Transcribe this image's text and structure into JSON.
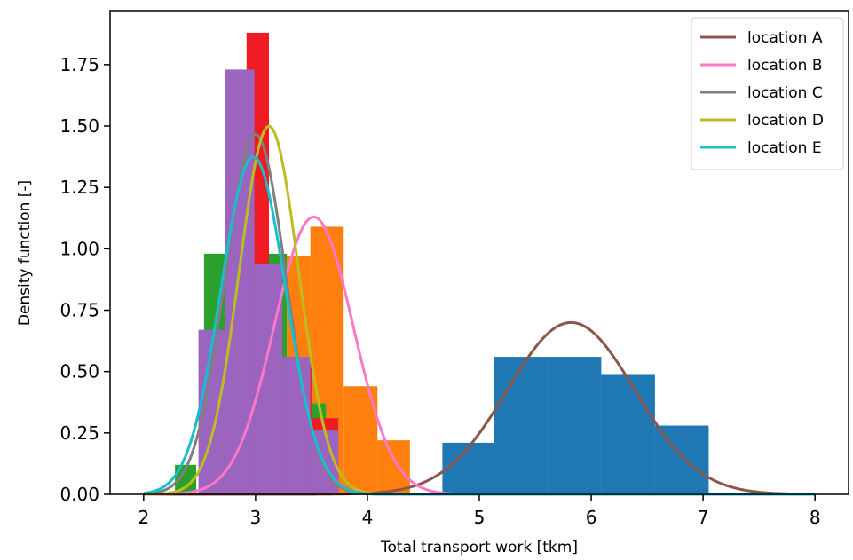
{
  "chart_data": {
    "type": "histogram+density",
    "xlabel": "Total transport work [tkm]",
    "ylabel": "Density function [-]",
    "xlim": [
      1.7,
      8.3
    ],
    "ylim": [
      0,
      1.97
    ],
    "xticks": [
      2,
      3,
      4,
      5,
      6,
      7,
      8
    ],
    "yticks": [
      0.0,
      0.25,
      0.5,
      0.75,
      1.0,
      1.25,
      1.5,
      1.75
    ],
    "xtick_labels": [
      "2",
      "3",
      "4",
      "5",
      "6",
      "7",
      "8"
    ],
    "ytick_labels": [
      "0.00",
      "0.25",
      "0.50",
      "0.75",
      "1.00",
      "1.25",
      "1.50",
      "1.75"
    ],
    "grid": false,
    "legend_position": "top-right",
    "histograms": [
      {
        "color": "#1f77b4",
        "bins": [
          {
            "x0": 4.67,
            "x1": 5.13,
            "height": 0.21
          },
          {
            "x0": 5.13,
            "x1": 5.61,
            "height": 0.56
          },
          {
            "x0": 5.61,
            "x1": 6.09,
            "height": 0.56
          },
          {
            "x0": 6.09,
            "x1": 6.57,
            "height": 0.49
          },
          {
            "x0": 6.57,
            "x1": 7.05,
            "height": 0.28
          }
        ]
      },
      {
        "color": "#ff7f0e",
        "bins": [
          {
            "x0": 3.28,
            "x1": 3.49,
            "height": 0.97
          },
          {
            "x0": 3.49,
            "x1": 3.78,
            "height": 1.09
          },
          {
            "x0": 3.78,
            "x1": 4.09,
            "height": 0.44
          },
          {
            "x0": 4.09,
            "x1": 4.38,
            "height": 0.22
          }
        ]
      },
      {
        "color": "#2ca02c",
        "bins": [
          {
            "x0": 2.28,
            "x1": 2.47,
            "height": 0.12
          },
          {
            "x0": 2.54,
            "x1": 2.76,
            "height": 0.98
          },
          {
            "x0": 3.12,
            "x1": 3.28,
            "height": 0.98
          },
          {
            "x0": 3.49,
            "x1": 3.63,
            "height": 0.37
          }
        ]
      },
      {
        "color": "#f01b22",
        "bins": [
          {
            "x0": 2.92,
            "x1": 3.12,
            "height": 1.88
          },
          {
            "x0": 3.12,
            "x1": 3.24,
            "height": 0.94
          },
          {
            "x0": 3.24,
            "x1": 3.42,
            "height": 0.4
          },
          {
            "x0": 3.42,
            "x1": 3.5,
            "height": 0.54
          },
          {
            "x0": 3.5,
            "x1": 3.74,
            "height": 0.31
          }
        ]
      },
      {
        "color": "#9b64be",
        "bins": [
          {
            "x0": 2.49,
            "x1": 2.73,
            "height": 0.67
          },
          {
            "x0": 2.73,
            "x1": 2.99,
            "height": 1.73
          },
          {
            "x0": 2.99,
            "x1": 3.24,
            "height": 0.94
          },
          {
            "x0": 3.24,
            "x1": 3.49,
            "height": 0.56
          },
          {
            "x0": 3.49,
            "x1": 3.74,
            "height": 0.26
          }
        ]
      }
    ],
    "series": [
      {
        "name": "location A",
        "color": "#8c564b",
        "curve": "normal",
        "mean": 5.82,
        "sd": 0.57,
        "xrange": [
          2.0,
          8.0
        ]
      },
      {
        "name": "location B",
        "color": "#ff77c9",
        "curve": "normal",
        "mean": 3.52,
        "sd": 0.353,
        "xrange": [
          2.0,
          8.0
        ]
      },
      {
        "name": "location C",
        "color": "#7f7f7f",
        "curve": "normal",
        "mean": 3.0,
        "sd": 0.272,
        "xrange": [
          2.0,
          8.0
        ]
      },
      {
        "name": "location D",
        "color": "#bcbd22",
        "curve": "normal",
        "mean": 3.12,
        "sd": 0.266,
        "xrange": [
          2.0,
          8.0
        ]
      },
      {
        "name": "location E",
        "color": "#17becf",
        "curve": "normal",
        "mean": 2.98,
        "sd": 0.29,
        "xrange": [
          2.0,
          8.0
        ]
      }
    ]
  }
}
